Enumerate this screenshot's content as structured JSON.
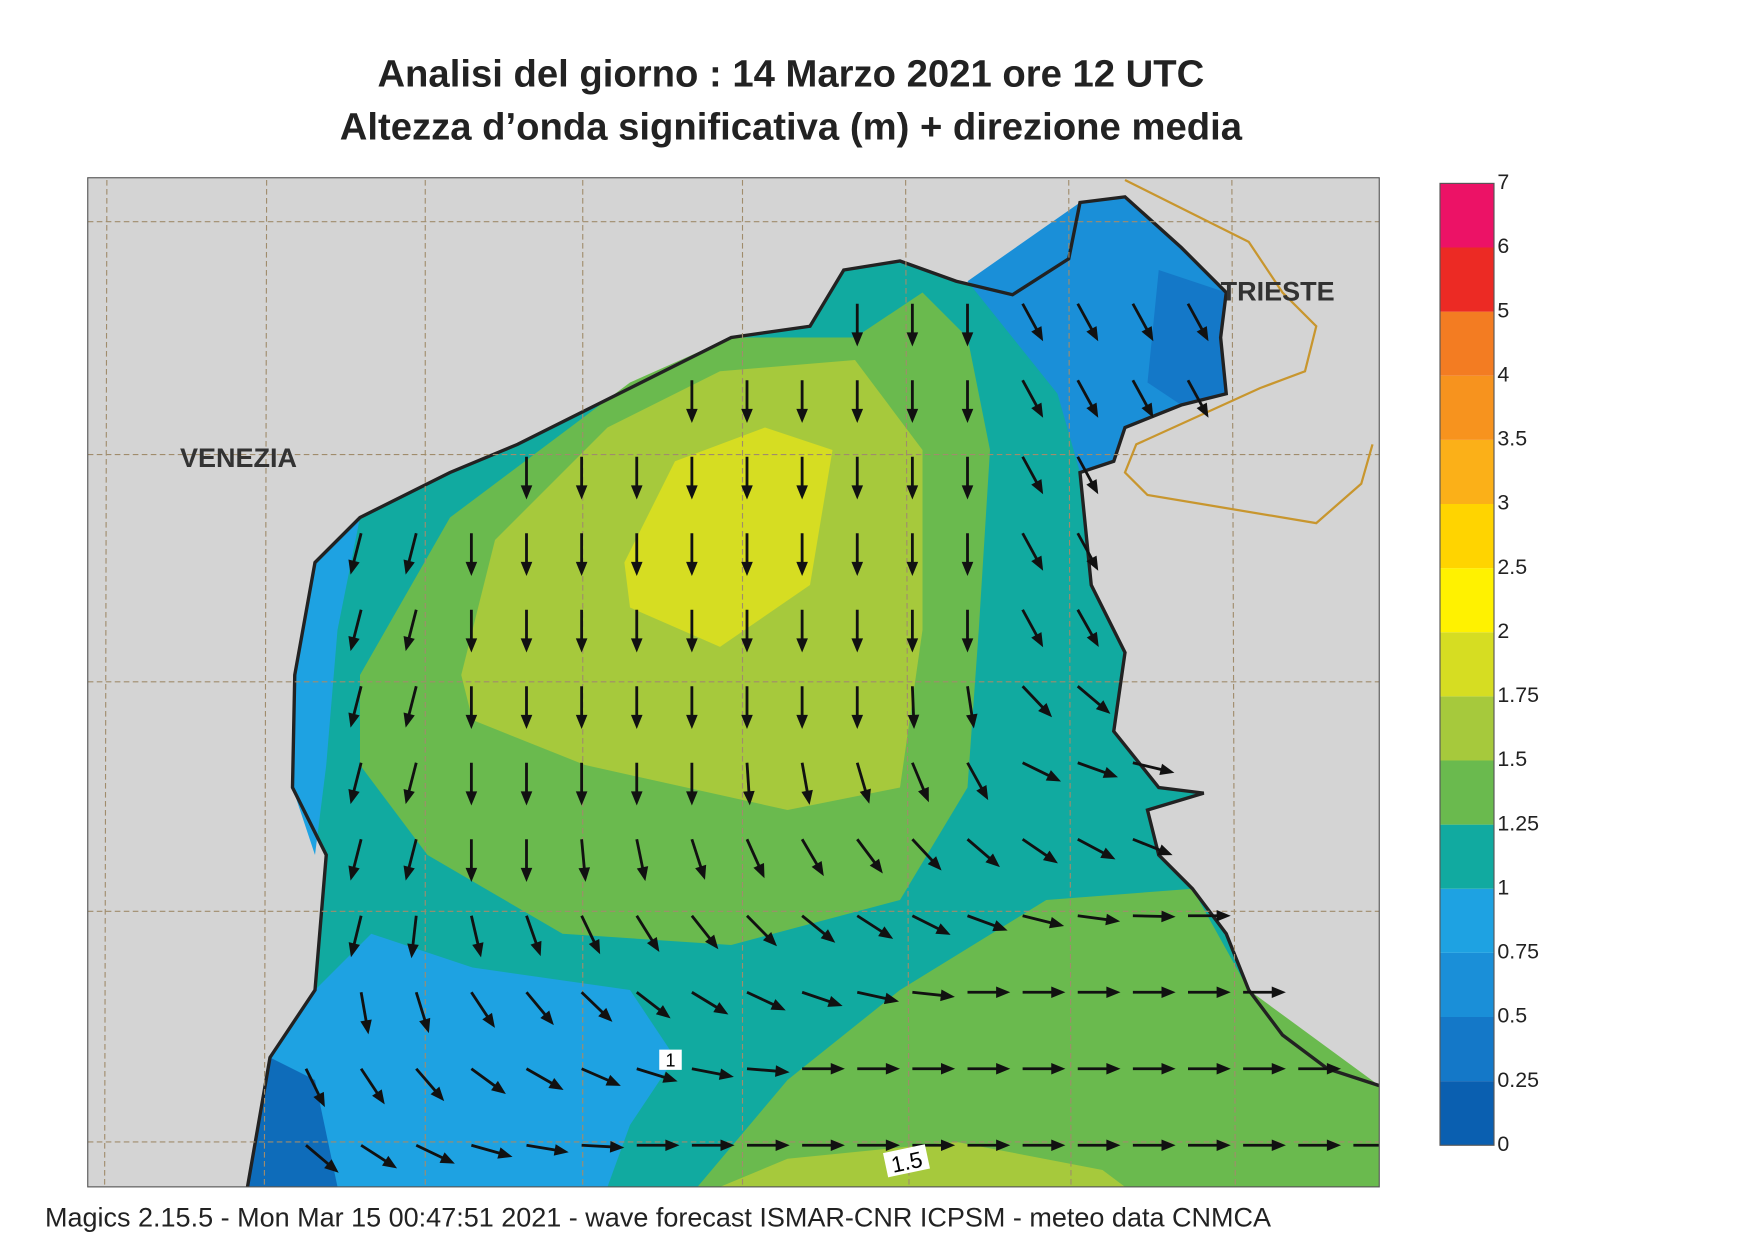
{
  "header": {
    "title_line1": "Analisi del giorno :  14   Marzo   2021   ore 12 UTC",
    "title_line2": "Altezza d’onda significativa (m) + direzione media"
  },
  "map": {
    "labels": [
      "VENEZIA",
      "TRIESTE"
    ],
    "contour_labels": [
      "1",
      "1.5"
    ]
  },
  "legend": {
    "levels": [
      0,
      0.25,
      0.5,
      0.75,
      1,
      1.25,
      1.5,
      1.75,
      2,
      2.5,
      3,
      3.5,
      4,
      5,
      6,
      7
    ],
    "colors": [
      "#0a5fb0",
      "#1478c8",
      "#1a8fd8",
      "#1ea2e2",
      "#11aaa0",
      "#6aba4e",
      "#a6c93c",
      "#d6dd22",
      "#fff200",
      "#ffd400",
      "#fbb018",
      "#f7931e",
      "#f37c22",
      "#ec2a24",
      "#ec1266"
    ]
  },
  "footer": "Magics 2.15.5 - Mon Mar 15 00:47:51 2021 - wave forecast  ISMAR-CNR  ICPSM - meteo data   CNMCA"
}
